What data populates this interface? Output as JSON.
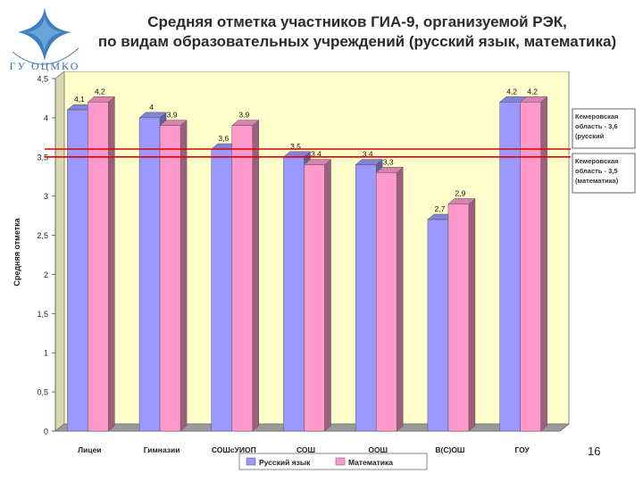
{
  "header": {
    "title_line1": "Средняя отметка участников ГИА-9, организуемой РЭК,",
    "title_line2": "по видам образовательных учреждений (русский язык, математика)",
    "logo_text": "ГУ ОЦМКО"
  },
  "page_number": "16",
  "chart_data": {
    "type": "bar",
    "title": "Средняя отметка участников ГИА-9, организуемой РЭК, по видам образовательных учреждений (русский язык, математика)",
    "ylabel": "Средняя отметка",
    "xlabel": "",
    "ylim": [
      0,
      4.5
    ],
    "ytick_step": 0.5,
    "yticks": [
      "0",
      "0,5",
      "1",
      "1,5",
      "2",
      "2,5",
      "3",
      "3,5",
      "4",
      "4,5"
    ],
    "grid": false,
    "categories": [
      "Лицеи",
      "Гимназии",
      "СОШсУИОП",
      "СОШ",
      "ООШ",
      "В(С)ОШ",
      "ГОУ"
    ],
    "series": [
      {
        "name": "Русский язык",
        "color": "#9999ff",
        "values": [
          4.1,
          4,
          3.6,
          3.5,
          3.4,
          2.7,
          4.2
        ],
        "labels": [
          "4,1",
          "4",
          "3,6",
          "3,5",
          "3,4",
          "2,7",
          "4,2"
        ]
      },
      {
        "name": "Математика",
        "color": "#ff99cc",
        "values": [
          4.2,
          3.9,
          3.9,
          3.4,
          3.3,
          2.9,
          4.2
        ],
        "labels": [
          "4,2",
          "3,9",
          "3,9",
          "3,4",
          "3,3",
          "2,9",
          "4,2"
        ]
      }
    ],
    "reference_lines": [
      {
        "value": 3.6,
        "color": "#dd0000",
        "label_lines": [
          "Кемеровская",
          "область - 3,6",
          "(русский"
        ]
      },
      {
        "value": 3.5,
        "color": "#dd0000",
        "label_lines": [
          "Кемеровская",
          "область - 3,5",
          "(математика)"
        ]
      }
    ],
    "legend_position": "bottom",
    "plot_background": "#ffffcc"
  }
}
